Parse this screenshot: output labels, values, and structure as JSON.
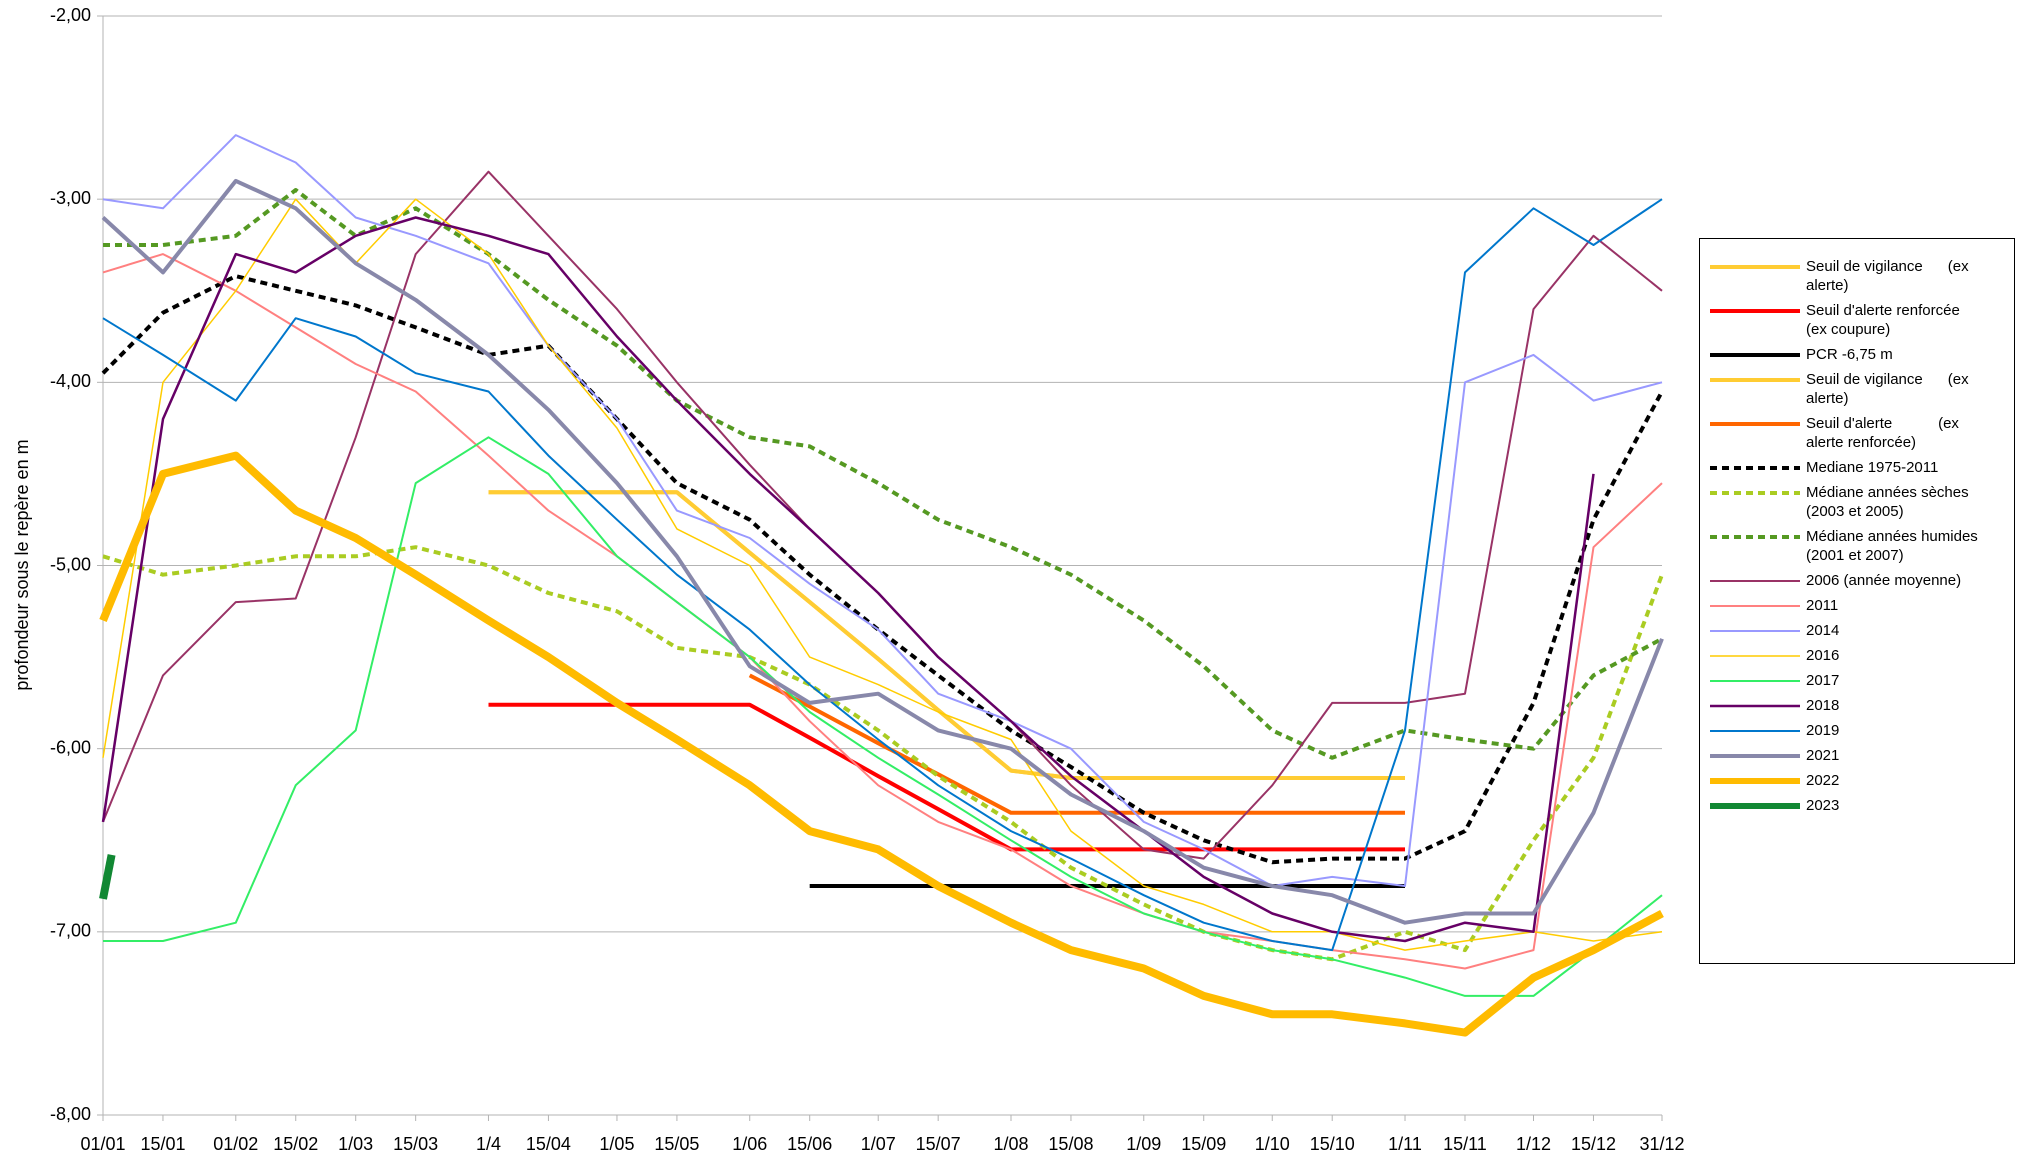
{
  "chart_data": {
    "type": "line",
    "ylabel": "profondeur sous le repère en m",
    "xlim": [
      1,
      365
    ],
    "ylim": [
      -8,
      -2
    ],
    "grid": true,
    "legend": "right",
    "xticks": [
      {
        "value": 1,
        "label": "01/01"
      },
      {
        "value": 15,
        "label": "15/01"
      },
      {
        "value": 32,
        "label": "01/02"
      },
      {
        "value": 46,
        "label": "15/02"
      },
      {
        "value": 60,
        "label": "1/03"
      },
      {
        "value": 74,
        "label": "15/03"
      },
      {
        "value": 91,
        "label": "1/4"
      },
      {
        "value": 105,
        "label": "15/04"
      },
      {
        "value": 121,
        "label": "1/05"
      },
      {
        "value": 135,
        "label": "15/05"
      },
      {
        "value": 152,
        "label": "1/06"
      },
      {
        "value": 166,
        "label": "15/06"
      },
      {
        "value": 182,
        "label": "1/07"
      },
      {
        "value": 196,
        "label": "15/07"
      },
      {
        "value": 213,
        "label": "1/08"
      },
      {
        "value": 227,
        "label": "15/08"
      },
      {
        "value": 244,
        "label": "1/09"
      },
      {
        "value": 258,
        "label": "15/09"
      },
      {
        "value": 274,
        "label": "1/10"
      },
      {
        "value": 288,
        "label": "15/10"
      },
      {
        "value": 305,
        "label": "1/11"
      },
      {
        "value": 319,
        "label": "15/11"
      },
      {
        "value": 335,
        "label": "1/12"
      },
      {
        "value": 349,
        "label": "15/12"
      },
      {
        "value": 365,
        "label": "31/12"
      }
    ],
    "yticks": [
      {
        "value": -2,
        "label": "-2,00"
      },
      {
        "value": -3,
        "label": "-3,00"
      },
      {
        "value": -4,
        "label": "-4,00"
      },
      {
        "value": -5,
        "label": "-5,00"
      },
      {
        "value": -6,
        "label": "-6,00"
      },
      {
        "value": -7,
        "label": "-7,00"
      },
      {
        "value": -8,
        "label": "-8,00"
      }
    ],
    "x": [
      1,
      15,
      32,
      46,
      60,
      74,
      91,
      105,
      121,
      135,
      152,
      166,
      182,
      196,
      213,
      227,
      244,
      258,
      274,
      288,
      305,
      319,
      335,
      349,
      365
    ],
    "series": [
      {
        "name": "Seuil de vigilance      (ex alerte)",
        "color": "#ffcc33",
        "width": 4,
        "dashed": false,
        "values": [
          null,
          null,
          null,
          null,
          null,
          null,
          -4.6,
          -4.6,
          -4.6,
          -4.6,
          -4.93,
          -5.2,
          -5.51,
          -5.79,
          -6.12,
          -6.16,
          -6.16,
          -6.16,
          -6.16,
          -6.16,
          -6.16,
          null,
          null,
          null,
          null
        ]
      },
      {
        "name": "Seuil d'alerte renforcée       (ex coupure)",
        "color": "#ff0000",
        "width": 4,
        "dashed": false,
        "values": [
          null,
          null,
          null,
          null,
          null,
          null,
          -5.76,
          -5.76,
          -5.76,
          -5.76,
          -5.76,
          -5.94,
          -6.15,
          -6.33,
          -6.55,
          -6.55,
          -6.55,
          -6.55,
          -6.55,
          -6.55,
          -6.55,
          null,
          null,
          null,
          null
        ]
      },
      {
        "name": "PCR -6,75 m",
        "color": "#000000",
        "width": 4,
        "dashed": false,
        "values": [
          null,
          null,
          null,
          null,
          null,
          null,
          null,
          null,
          null,
          null,
          null,
          -6.75,
          -6.75,
          -6.75,
          -6.75,
          -6.75,
          -6.75,
          -6.75,
          -6.75,
          -6.75,
          -6.75,
          null,
          null,
          null,
          null
        ]
      },
      {
        "name": "Seuil de vigilance      (ex alerte)",
        "color": "#ffcc33",
        "width": 4,
        "dashed": false,
        "values": [
          null,
          null,
          null,
          null,
          null,
          null,
          -4.6,
          -4.6,
          -4.6,
          -4.6,
          -4.93,
          -5.2,
          -5.51,
          -5.79,
          -6.12,
          -6.16,
          -6.16,
          -6.16,
          -6.16,
          -6.16,
          -6.16,
          null,
          null,
          null,
          null
        ]
      },
      {
        "name": "Seuil d'alerte           (ex alerte renforcée)",
        "color": "#ff6600",
        "width": 4,
        "dashed": false,
        "values": [
          null,
          null,
          null,
          null,
          null,
          null,
          null,
          null,
          null,
          null,
          -5.6,
          -5.77,
          -5.97,
          -6.14,
          -6.35,
          -6.35,
          -6.35,
          -6.35,
          -6.35,
          -6.35,
          -6.35,
          null,
          null,
          null,
          null
        ]
      },
      {
        "name": "Mediane 1975-2011",
        "color": "#000000",
        "width": 4,
        "dashed": true,
        "values": [
          -3.95,
          -3.62,
          -3.42,
          -3.5,
          -3.58,
          -3.7,
          -3.85,
          -3.8,
          -4.2,
          -4.55,
          -4.75,
          -5.05,
          -5.35,
          -5.6,
          -5.9,
          -6.1,
          -6.35,
          -6.5,
          -6.62,
          -6.6,
          -6.6,
          -6.45,
          -5.75,
          -4.75,
          -4.05
        ]
      },
      {
        "name": "Médiane années sèches (2003 et 2005)",
        "color": "#aacc22",
        "width": 4,
        "dashed": true,
        "values": [
          -4.95,
          -5.05,
          -5.0,
          -4.95,
          -4.95,
          -4.9,
          -5.0,
          -5.15,
          -5.25,
          -5.45,
          -5.5,
          -5.65,
          -5.9,
          -6.15,
          -6.4,
          -6.65,
          -6.85,
          -7.0,
          -7.1,
          -7.15,
          -7.0,
          -7.1,
          -6.5,
          -6.05,
          -5.05
        ]
      },
      {
        "name": "Médiane années humides (2001 et 2007)",
        "color": "#559922",
        "width": 4,
        "dashed": true,
        "values": [
          -3.25,
          -3.25,
          -3.2,
          -2.95,
          -3.2,
          -3.05,
          -3.3,
          -3.55,
          -3.8,
          -4.1,
          -4.3,
          -4.35,
          -4.55,
          -4.75,
          -4.9,
          -5.05,
          -5.3,
          -5.55,
          -5.9,
          -6.05,
          -5.9,
          -5.95,
          -6.0,
          -5.6,
          -5.4
        ]
      },
      {
        "name": "2006 (année moyenne)",
        "color": "#993366",
        "width": 2,
        "dashed": false,
        "values": [
          -6.4,
          -5.6,
          -5.2,
          -5.18,
          -4.3,
          -3.3,
          -2.85,
          -3.2,
          -3.6,
          -4.0,
          -4.45,
          -4.8,
          -5.15,
          -5.5,
          -5.85,
          -6.2,
          -6.55,
          -6.6,
          -6.2,
          -5.75,
          -5.75,
          -5.7,
          -3.6,
          -3.2,
          -3.5
        ]
      },
      {
        "name": "2011",
        "color": "#ff8080",
        "width": 2,
        "dashed": false,
        "values": [
          -3.4,
          -3.3,
          -3.5,
          -3.7,
          -3.9,
          -4.05,
          -4.4,
          -4.7,
          -4.95,
          -5.2,
          -5.5,
          -5.85,
          -6.2,
          -6.4,
          -6.55,
          -6.75,
          -6.9,
          -7.0,
          -7.05,
          -7.1,
          -7.15,
          -7.2,
          -7.1,
          -4.9,
          -4.55
        ]
      },
      {
        "name": "2014",
        "color": "#9999ff",
        "width": 2,
        "dashed": false,
        "values": [
          -3.0,
          -3.05,
          -2.65,
          -2.8,
          -3.1,
          -3.2,
          -3.35,
          -3.8,
          -4.2,
          -4.7,
          -4.85,
          -5.1,
          -5.35,
          -5.7,
          -5.85,
          -6.0,
          -6.4,
          -6.55,
          -6.75,
          -6.7,
          -6.75,
          -4.0,
          -3.85,
          -4.1,
          -4.0
        ]
      },
      {
        "name": "2016",
        "color": "#ffcc00",
        "width": 1.5,
        "dashed": false,
        "values": [
          -6.05,
          -4.0,
          -3.5,
          -3.0,
          -3.35,
          -3.0,
          -3.3,
          -3.8,
          -4.25,
          -4.8,
          -5.0,
          -5.5,
          -5.65,
          -5.8,
          -5.95,
          -6.45,
          -6.75,
          -6.85,
          -7.0,
          -7.0,
          -7.1,
          -7.05,
          -7.0,
          -7.05,
          -7.0
        ]
      },
      {
        "name": "2017",
        "color": "#33ee66",
        "width": 2,
        "dashed": false,
        "values": [
          -7.05,
          -7.05,
          -6.95,
          -6.2,
          -5.9,
          -4.55,
          -4.3,
          -4.5,
          -4.95,
          -5.2,
          -5.5,
          -5.8,
          -6.05,
          -6.25,
          -6.5,
          -6.7,
          -6.9,
          -7.0,
          -7.1,
          -7.15,
          -7.25,
          -7.35,
          -7.35,
          -7.1,
          -6.8
        ]
      },
      {
        "name": "2018",
        "color": "#660066",
        "width": 2.5,
        "dashed": false,
        "values": [
          -6.4,
          -4.2,
          -3.3,
          -3.4,
          -3.2,
          -3.1,
          -3.2,
          -3.3,
          -3.75,
          -4.1,
          -4.5,
          -4.8,
          -5.15,
          -5.5,
          -5.85,
          -6.15,
          -6.45,
          -6.7,
          -6.9,
          -7.0,
          -7.05,
          -6.95,
          -7.0,
          -4.5,
          null
        ]
      },
      {
        "name": "2019",
        "color": "#0077cc",
        "width": 2,
        "dashed": false,
        "values": [
          -3.65,
          -3.85,
          -4.1,
          -3.65,
          -3.75,
          -3.95,
          -4.05,
          -4.4,
          -4.75,
          -5.05,
          -5.35,
          -5.65,
          -5.95,
          -6.2,
          -6.45,
          -6.6,
          -6.8,
          -6.95,
          -7.05,
          -7.1,
          -5.9,
          -3.4,
          -3.05,
          -3.25,
          -3.0
        ]
      },
      {
        "name": "2021",
        "color": "#8888aa",
        "width": 4,
        "dashed": false,
        "values": [
          -3.1,
          -3.4,
          -2.9,
          -3.05,
          -3.35,
          -3.55,
          -3.85,
          -4.15,
          -4.55,
          -4.95,
          -5.55,
          -5.75,
          -5.7,
          -5.9,
          -6.0,
          -6.25,
          -6.45,
          -6.65,
          -6.75,
          -6.8,
          -6.95,
          -6.9,
          -6.9,
          -6.35,
          -5.4
        ]
      },
      {
        "name": "2022",
        "color": "#ffbb00",
        "width": 8,
        "dashed": false,
        "values": [
          -5.3,
          -4.5,
          -4.4,
          -4.7,
          -4.85,
          -5.05,
          -5.3,
          -5.5,
          -5.75,
          -5.95,
          -6.2,
          -6.45,
          -6.55,
          -6.75,
          -6.95,
          -7.1,
          -7.2,
          -7.35,
          -7.45,
          -7.45,
          -7.5,
          -7.55,
          -7.25,
          -7.1,
          -6.9
        ]
      },
      {
        "name": "2023",
        "color": "#118833",
        "width": 8,
        "dashed": false,
        "x": [
          1,
          3
        ],
        "values": [
          -6.82,
          -6.58
        ]
      }
    ]
  }
}
